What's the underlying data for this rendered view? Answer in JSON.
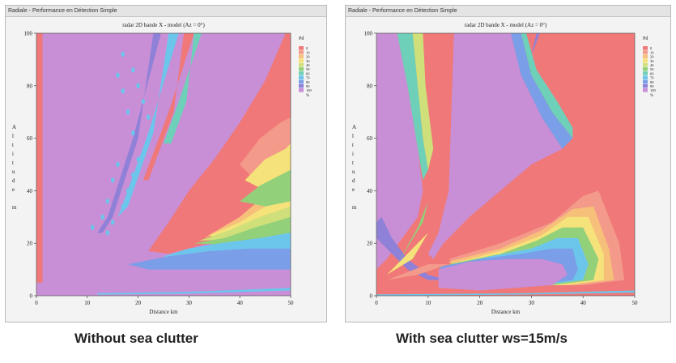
{
  "panels": [
    {
      "window_title": "Radiale - Performance en Détection Simple",
      "caption": "Without sea clutter",
      "chart_data": {
        "type": "heatmap",
        "title": "radar 2D bande X - model (Az = 0°)",
        "xlabel": "Distance km",
        "ylabel": "Altitude m",
        "xlim": [
          0,
          50
        ],
        "ylim": [
          0,
          100
        ],
        "xticks": [
          0,
          10,
          20,
          30,
          40,
          50
        ],
        "yticks": [
          0,
          20,
          40,
          60,
          80,
          100
        ],
        "legend_title": "Pd",
        "legend_levels": [
          "0",
          "10",
          "20",
          "30",
          "40",
          "50",
          "60",
          "70",
          "80",
          "90",
          "100"
        ],
        "legend_unit": "%",
        "legend_colors": [
          "#f07878",
          "#f49a8a",
          "#f7c07a",
          "#f5e27a",
          "#cfe07a",
          "#93d07a",
          "#6ed0b8",
          "#6cc6ec",
          "#7a9ee8",
          "#8f80d8",
          "#c88ed6"
        ],
        "background_value": 100,
        "regions": [
          {
            "value": 0,
            "desc": "wedge",
            "points": [
              [
                22,
                16
              ],
              [
                26,
                28
              ],
              [
                30,
                38
              ],
              [
                35,
                48
              ],
              [
                40,
                60
              ],
              [
                45,
                78
              ],
              [
                50,
                100
              ],
              [
                50,
                0
              ],
              [
                30,
                0
              ],
              [
                24,
                10
              ]
            ]
          },
          {
            "value": 100,
            "points": [
              [
                24,
                12
              ],
              [
                28,
                24
              ],
              [
                32,
                30
              ],
              [
                36,
                38
              ],
              [
                40,
                43
              ],
              [
                45,
                46
              ],
              [
                50,
                48
              ],
              [
                50,
                0
              ],
              [
                24,
                0
              ]
            ]
          }
        ]
      }
    },
    {
      "window_title": "Radiale - Performance en Détection Simple",
      "caption": "With sea clutter ws=15m/s",
      "chart_data": {
        "type": "heatmap",
        "title": "radar 2D bande X - model (Az = 0°)",
        "xlabel": "Distance km",
        "ylabel": "Altitude m",
        "xlim": [
          0,
          50
        ],
        "ylim": [
          0,
          100
        ],
        "xticks": [
          0,
          10,
          20,
          30,
          40,
          50
        ],
        "yticks": [
          0,
          20,
          40,
          60,
          80,
          100
        ],
        "legend_title": "Pd",
        "legend_levels": [
          "0",
          "10",
          "20",
          "30",
          "40",
          "50",
          "60",
          "70",
          "80",
          "90",
          "100"
        ],
        "legend_unit": "%",
        "legend_colors": [
          "#f07878",
          "#f49a8a",
          "#f7c07a",
          "#f5e27a",
          "#cfe07a",
          "#93d07a",
          "#6ed0b8",
          "#6cc6ec",
          "#7a9ee8",
          "#8f80d8",
          "#c88ed6"
        ],
        "background_value": 0
      }
    }
  ]
}
